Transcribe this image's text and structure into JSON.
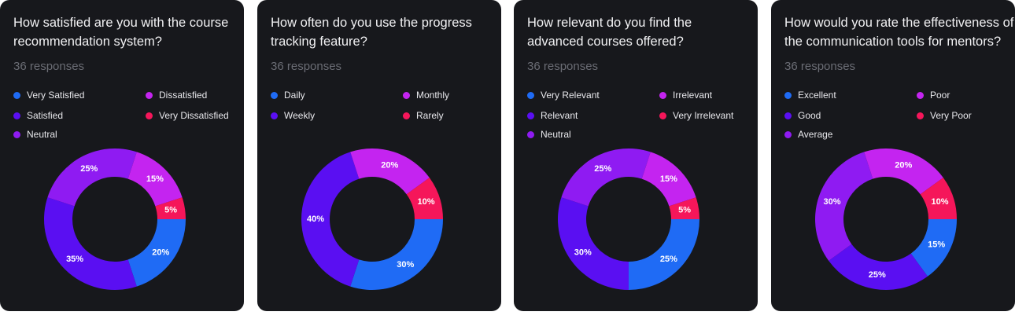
{
  "chart_data": [
    {
      "type": "pie",
      "title": "How satisfied are you with the course recommendation system?",
      "title_lines": [
        "How satisfied are you with the course",
        "recommendation system?"
      ],
      "responses": "36 responses",
      "categories": [
        "Very Satisfied",
        "Satisfied",
        "Neutral",
        "Dissatisfied",
        "Very Dissatisfied"
      ],
      "values": [
        20,
        35,
        25,
        15,
        5
      ],
      "value_labels": [
        "20%",
        "35%",
        "25%",
        "15%",
        "5%"
      ],
      "colors": [
        "#1f6bf5",
        "#5a0ff2",
        "#8f1bf2",
        "#c424f0",
        "#f5165a"
      ]
    },
    {
      "type": "pie",
      "title": "How often do you use the progress tracking feature?",
      "title_lines": [
        "How often do you use the progress",
        "tracking feature?"
      ],
      "responses": "36 responses",
      "categories": [
        "Daily",
        "Weekly",
        "Monthly",
        "Rarely"
      ],
      "values": [
        30,
        40,
        20,
        10
      ],
      "value_labels": [
        "30%",
        "40%",
        "20%",
        "10%"
      ],
      "colors": [
        "#1f6bf5",
        "#5a0ff2",
        "#c424f0",
        "#f5165a"
      ]
    },
    {
      "type": "pie",
      "title": "How relevant do you find the advanced courses offered?",
      "title_lines": [
        "How relevant do you find the",
        "advanced courses offered?"
      ],
      "responses": "36 responses",
      "categories": [
        "Very Relevant",
        "Relevant",
        "Neutral",
        "Irrelevant",
        "Very Irrelevant"
      ],
      "values": [
        25,
        30,
        25,
        15,
        5
      ],
      "value_labels": [
        "25%",
        "30%",
        "25%",
        "15%",
        "5%"
      ],
      "colors": [
        "#1f6bf5",
        "#5a0ff2",
        "#8f1bf2",
        "#c424f0",
        "#f5165a"
      ]
    },
    {
      "type": "pie",
      "title": "How would you rate the effectiveness of the communication tools for mentors?",
      "title_lines": [
        "How would you rate the effectiveness of",
        "the communication tools for mentors?"
      ],
      "responses": "36 responses",
      "categories": [
        "Excellent",
        "Good",
        "Average",
        "Poor",
        "Very Poor"
      ],
      "values": [
        15,
        25,
        30,
        20,
        10
      ],
      "value_labels": [
        "15%",
        "25%",
        "30%",
        "20%",
        "10%"
      ],
      "colors": [
        "#1f6bf5",
        "#5a0ff2",
        "#8f1bf2",
        "#c424f0",
        "#f5165a"
      ]
    }
  ]
}
